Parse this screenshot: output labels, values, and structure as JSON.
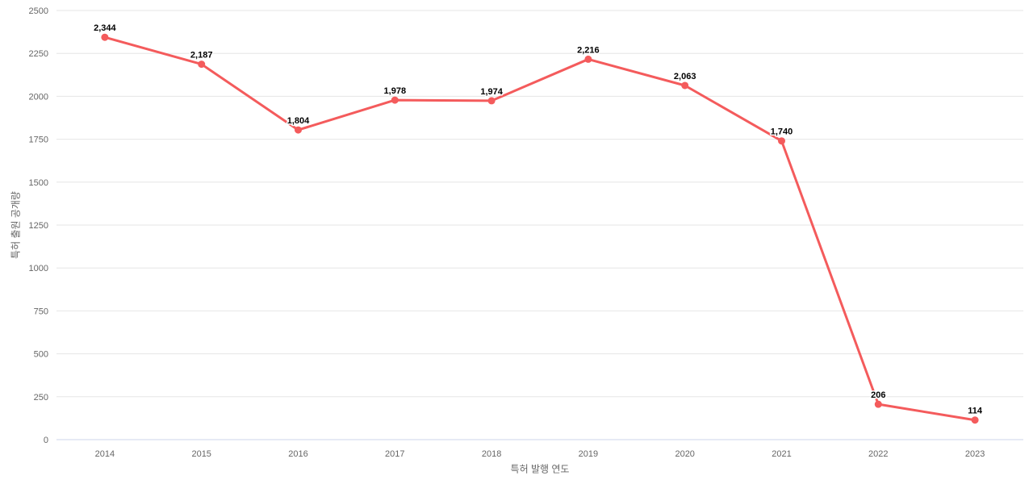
{
  "chart_data": {
    "type": "line",
    "title": "",
    "categories": [
      "2014",
      "2015",
      "2016",
      "2017",
      "2018",
      "2019",
      "2020",
      "2021",
      "2022",
      "2023"
    ],
    "values": [
      2344,
      2187,
      1804,
      1978,
      1974,
      2216,
      2063,
      1740,
      206,
      114
    ],
    "value_labels": [
      "2,344",
      "2,187",
      "1,804",
      "1,978",
      "1,974",
      "2,216",
      "2,063",
      "1,740",
      "206",
      "114"
    ],
    "xlabel": "특허 발행 연도",
    "ylabel": "특허 출원 공개량",
    "ylim": [
      0,
      2500
    ],
    "yticks": [
      0,
      250,
      500,
      750,
      1000,
      1250,
      1500,
      1750,
      2000,
      2250,
      2500
    ],
    "grid": true,
    "legend": false,
    "colors": {
      "series": "#f45b5c",
      "grid_line": "#e6e6e6",
      "axis_line": "#ccd6eb",
      "tick_label": "#666666",
      "axis_title": "#666666",
      "data_label": "#000000",
      "data_label_halo": "#ffffff",
      "background": "#ffffff"
    }
  }
}
